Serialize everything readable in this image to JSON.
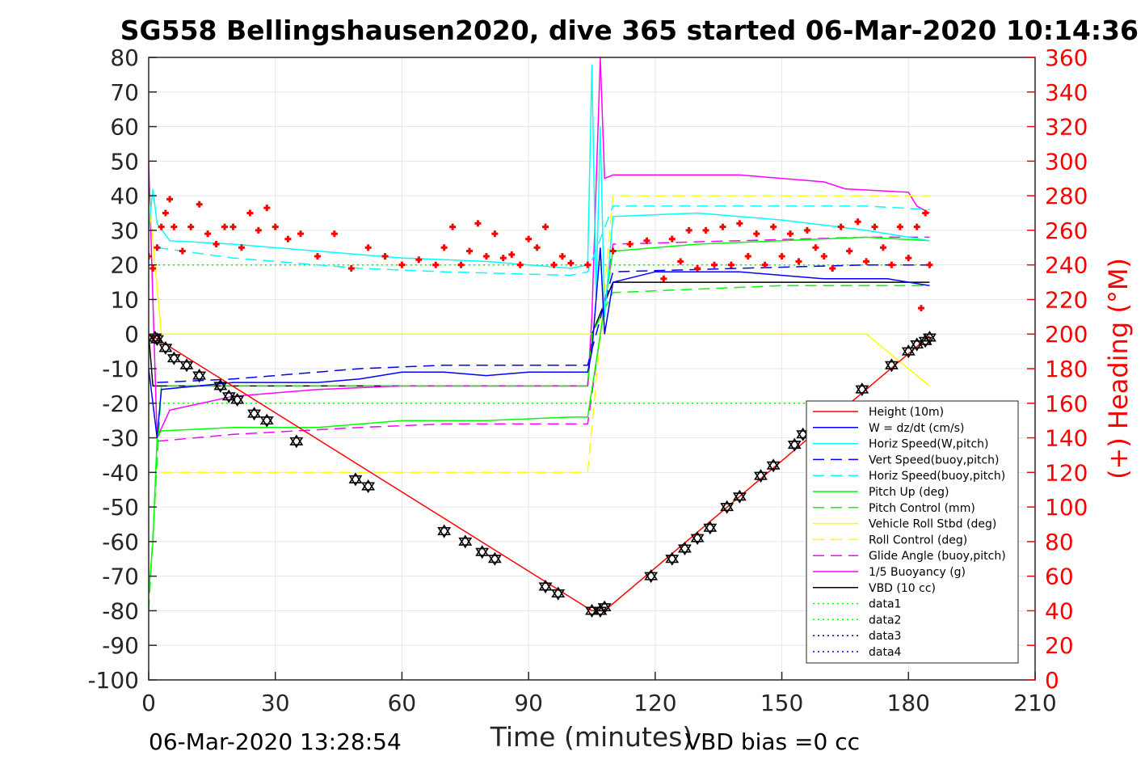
{
  "title": "SG558 Bellingshausen2020, dive 365 started 06-Mar-2020 10:14:36",
  "footer": {
    "timestamp": "06-Mar-2020 13:28:54",
    "vbd_bias": "VBD bias =0 cc"
  },
  "chart_data": {
    "type": "line",
    "xlabel": "Time (minutes)",
    "ylabel_left": "",
    "ylabel_right": "(+) Heading (°M)",
    "xlim": [
      0,
      210
    ],
    "ylim_left": [
      -100,
      80
    ],
    "ylim_right": [
      0,
      360
    ],
    "x_ticks": [
      0,
      30,
      60,
      90,
      120,
      150,
      180,
      210
    ],
    "y_ticks_left": [
      80,
      70,
      60,
      50,
      40,
      30,
      20,
      10,
      0,
      -10,
      -20,
      -30,
      -40,
      -50,
      -60,
      -70,
      -80,
      -90,
      -100
    ],
    "y_ticks_right": [
      360,
      340,
      320,
      300,
      280,
      260,
      240,
      220,
      200,
      180,
      160,
      140,
      120,
      100,
      80,
      60,
      40,
      20,
      0
    ],
    "grid": true,
    "legend_position": "bottom-right",
    "legend": [
      {
        "label": "Height (10m)",
        "color": "#ff0000",
        "dash": "solid"
      },
      {
        "label": "W = dz/dt (cm/s)",
        "color": "#0000ff",
        "dash": "solid"
      },
      {
        "label": "Horiz Speed(W,pitch)",
        "color": "#00ffff",
        "dash": "solid"
      },
      {
        "label": "Vert Speed(buoy,pitch)",
        "color": "#0000ff",
        "dash": "dashed"
      },
      {
        "label": "Horiz Speed(buoy,pitch)",
        "color": "#00ffff",
        "dash": "dashed"
      },
      {
        "label": "Pitch Up (deg)",
        "color": "#00ff00",
        "dash": "solid"
      },
      {
        "label": "Pitch Control (mm)",
        "color": "#00ff00",
        "dash": "dashed"
      },
      {
        "label": "Vehicle Roll Stbd (deg)",
        "color": "#ffff00",
        "dash": "solid"
      },
      {
        "label": "Roll Control (deg)",
        "color": "#ffff00",
        "dash": "dashed"
      },
      {
        "label": "Glide Angle (buoy,pitch)",
        "color": "#ff00ff",
        "dash": "dashed"
      },
      {
        "label": "1/5 Buoyancy (g)",
        "color": "#ff00ff",
        "dash": "solid"
      },
      {
        "label": "VBD (10 cc)",
        "color": "#000000",
        "dash": "solid"
      },
      {
        "label": "data1",
        "color": "#00ff00",
        "dash": "dotted"
      },
      {
        "label": "data2",
        "color": "#00ff00",
        "dash": "dotted"
      },
      {
        "label": "data3",
        "color": "#000080",
        "dash": "dotted"
      },
      {
        "label": "data4",
        "color": "#0000ff",
        "dash": "dotted"
      }
    ],
    "series": [
      {
        "name": "Height (10m)",
        "color": "#ff0000",
        "dash": "solid",
        "x": [
          0,
          1.5,
          105,
          108,
          185
        ],
        "y": [
          0,
          -1,
          -80,
          -80,
          -0.5
        ]
      },
      {
        "name": "W = dz/dt (cm/s)",
        "color": "#0000ff",
        "dash": "solid",
        "x": [
          0,
          2,
          3,
          20,
          40,
          50,
          60,
          70,
          80,
          90,
          104,
          105,
          107,
          108,
          110,
          120,
          140,
          160,
          175,
          185
        ],
        "y": [
          -10,
          -30,
          -16,
          -14,
          -14,
          -13,
          -11,
          -11,
          -12,
          -11,
          -11,
          -5,
          25,
          0,
          15,
          18,
          18,
          16,
          16,
          14
        ]
      },
      {
        "name": "Horiz Speed(W,pitch)",
        "color": "#00ffff",
        "dash": "solid",
        "x": [
          0,
          1,
          2,
          5,
          20,
          40,
          60,
          80,
          100,
          104,
          105,
          106,
          107,
          108,
          110,
          130,
          150,
          170,
          180,
          185
        ],
        "y": [
          30,
          42,
          32,
          27,
          26,
          24,
          22,
          21,
          19,
          20,
          78,
          10,
          60,
          5,
          34,
          35,
          33,
          30,
          28,
          27
        ]
      },
      {
        "name": "Vert Speed(buoy,pitch)",
        "color": "#0000ff",
        "dash": "dashed",
        "x": [
          2,
          20,
          50,
          70,
          100,
          104,
          110,
          140,
          170,
          185
        ],
        "y": [
          -14,
          -13,
          -10,
          -9,
          -9,
          -9,
          18,
          19,
          20,
          20
        ]
      },
      {
        "name": "Horiz Speed(buoy,pitch)",
        "color": "#00ffff",
        "dash": "dashed",
        "x": [
          2,
          20,
          50,
          70,
          100,
          104,
          110,
          140,
          170,
          185
        ],
        "y": [
          25,
          22,
          19,
          18,
          17,
          18,
          37,
          37,
          37,
          36
        ]
      },
      {
        "name": "Pitch Up (deg)",
        "color": "#00ff00",
        "dash": "solid",
        "x": [
          0,
          1,
          2,
          3,
          20,
          40,
          60,
          80,
          100,
          104,
          110,
          130,
          150,
          170,
          185
        ],
        "y": [
          -75,
          -60,
          -30,
          -28,
          -27,
          -27,
          -25,
          -25,
          -24,
          -24,
          24,
          26,
          27,
          28,
          27
        ]
      },
      {
        "name": "Pitch Control (mm)",
        "color": "#00ff00",
        "dash": "dashed",
        "x": [
          0,
          3,
          104,
          105,
          110,
          130,
          150,
          170,
          185
        ],
        "y": [
          -80,
          -15,
          -15,
          0,
          12,
          13,
          14,
          14,
          14
        ]
      },
      {
        "name": "Vehicle Roll Stbd (deg)",
        "color": "#ffff00",
        "dash": "solid",
        "x": [
          0,
          3,
          20,
          40,
          60,
          80,
          100,
          104,
          110,
          130,
          150,
          170,
          185
        ],
        "y": [
          40,
          0,
          0,
          0,
          0,
          0,
          0,
          0,
          0,
          0,
          0,
          0,
          -15
        ]
      },
      {
        "name": "Roll Control (deg)",
        "color": "#ffff00",
        "dash": "dashed",
        "x": [
          3,
          104,
          110,
          185
        ],
        "y": [
          -40,
          -40,
          40,
          40
        ]
      },
      {
        "name": "Glide Angle (buoy,pitch)",
        "color": "#ff00ff",
        "dash": "dashed",
        "x": [
          2,
          20,
          50,
          70,
          100,
          104,
          110,
          140,
          170,
          185
        ],
        "y": [
          -31,
          -29,
          -27,
          -26,
          -26,
          -26,
          26,
          27,
          28,
          28
        ]
      },
      {
        "name": "1/5 Buoyancy (g)",
        "color": "#ff00ff",
        "dash": "solid",
        "x": [
          0,
          2,
          5,
          20,
          40,
          60,
          80,
          100,
          104,
          105,
          107,
          108,
          110,
          140,
          160,
          165,
          180,
          182,
          185
        ],
        "y": [
          50,
          -30,
          -22,
          -18,
          -16,
          -15,
          -15,
          -15,
          -15,
          5,
          80,
          45,
          46,
          46,
          44,
          42,
          41,
          37,
          35
        ]
      },
      {
        "name": "VBD (10 cc)",
        "color": "#000000",
        "dash": "solid",
        "x": [
          0,
          1,
          104,
          105,
          110,
          185
        ],
        "y": [
          0,
          -15,
          -15,
          0,
          15,
          15
        ]
      },
      {
        "name": "data1",
        "color": "#00ff00",
        "dash": "dotted",
        "x": [
          0,
          185
        ],
        "y": [
          20,
          20
        ]
      },
      {
        "name": "data2",
        "color": "#00ff00",
        "dash": "dotted",
        "x": [
          0,
          185
        ],
        "y": [
          -20,
          -20
        ]
      },
      {
        "name": "data3",
        "color": "#000080",
        "dash": "dotted",
        "x": [
          0,
          185
        ],
        "y": [
          20,
          20
        ]
      },
      {
        "name": "data4",
        "color": "#0000ff",
        "dash": "dotted",
        "x": [
          0,
          185
        ],
        "y": [
          -20,
          -20
        ]
      }
    ],
    "heading": {
      "name": "(+) Heading",
      "color": "#ff0000",
      "axis": "right",
      "x": [
        0,
        1,
        2,
        3,
        4,
        5,
        6,
        8,
        10,
        12,
        14,
        16,
        18,
        20,
        22,
        24,
        26,
        28,
        30,
        33,
        36,
        40,
        44,
        48,
        52,
        56,
        60,
        64,
        68,
        70,
        72,
        74,
        76,
        78,
        80,
        82,
        84,
        86,
        88,
        90,
        92,
        94,
        96,
        98,
        100,
        104,
        110,
        114,
        118,
        122,
        124,
        126,
        128,
        130,
        132,
        134,
        136,
        138,
        140,
        142,
        144,
        146,
        148,
        150,
        152,
        154,
        156,
        158,
        160,
        162,
        164,
        166,
        168,
        170,
        172,
        174,
        176,
        178,
        180,
        182,
        183,
        184,
        185
      ],
      "y": [
        245,
        238,
        250,
        262,
        270,
        278,
        262,
        248,
        262,
        275,
        258,
        252,
        262,
        262,
        250,
        270,
        260,
        273,
        262,
        255,
        258,
        245,
        258,
        238,
        250,
        245,
        240,
        243,
        240,
        250,
        262,
        240,
        248,
        264,
        245,
        258,
        244,
        246,
        240,
        255,
        250,
        262,
        240,
        245,
        241,
        240,
        248,
        252,
        254,
        232,
        255,
        242,
        260,
        238,
        260,
        240,
        262,
        240,
        264,
        245,
        258,
        240,
        262,
        245,
        258,
        242,
        260,
        250,
        245,
        238,
        262,
        248,
        265,
        242,
        262,
        250,
        240,
        262,
        244,
        262,
        215,
        270,
        240
      ]
    },
    "depth_markers": {
      "x": [
        1.5,
        2,
        4,
        6,
        9,
        12,
        17,
        19,
        21,
        25,
        28,
        35,
        49,
        52,
        70,
        75,
        79,
        82,
        94,
        97,
        105,
        107,
        108,
        119,
        124,
        127,
        130,
        133,
        137,
        140,
        145,
        148,
        153,
        155,
        169,
        176,
        180,
        182,
        184,
        185
      ],
      "y": [
        -1,
        -1.5,
        -4,
        -7,
        -9,
        -12,
        -15,
        -18,
        -19,
        -23,
        -25,
        -31,
        -42,
        -44,
        -57,
        -60,
        -63,
        -65,
        -73,
        -75,
        -80,
        -80,
        -79,
        -70,
        -65,
        -62,
        -59,
        -56,
        -50,
        -47,
        -41,
        -38,
        -32,
        -29,
        -16,
        -9,
        -5,
        -3,
        -2,
        -1
      ]
    }
  }
}
